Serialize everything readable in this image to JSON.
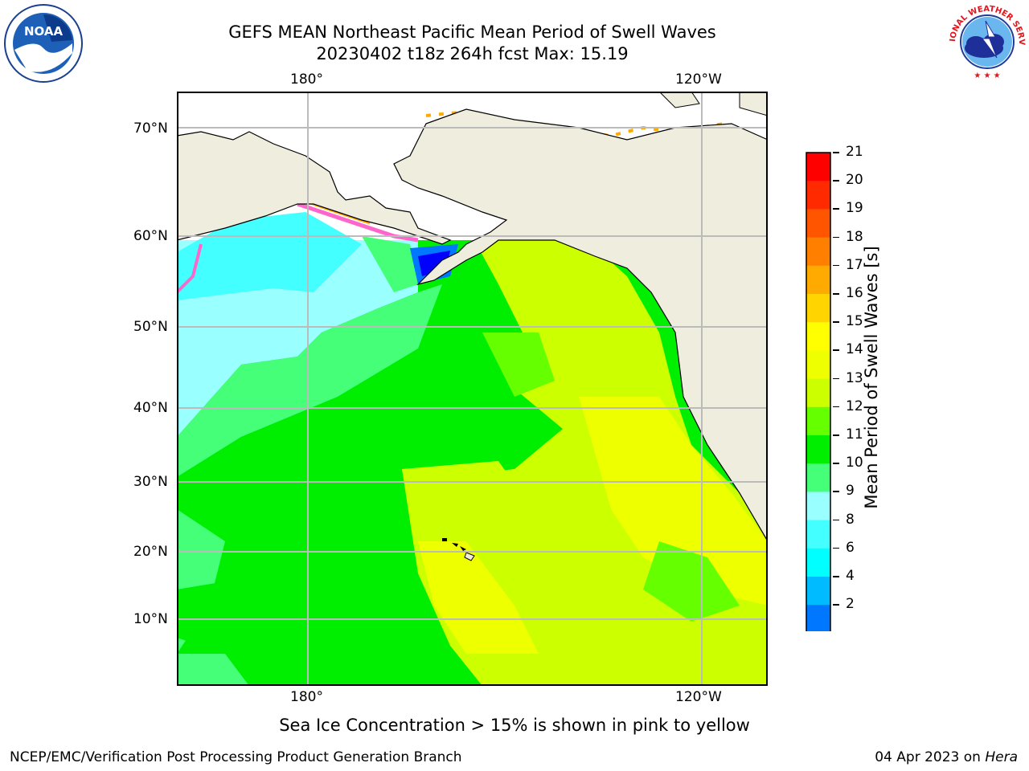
{
  "title_line1": "GEFS MEAN Northeast Pacific Mean Period of Swell Waves",
  "title_line2": "20230402 t18z 264h fcst   Max: 15.19",
  "logos": {
    "left": {
      "icon": "noaa-logo-icon",
      "text": "NOAA"
    },
    "right": {
      "icon": "national-weather-service-logo-icon",
      "text": "NATIONAL WEATHER SERVICE"
    }
  },
  "map": {
    "top_lon_labels": [
      "180°",
      "120°W"
    ],
    "bottom_lon_labels": [
      "180°",
      "120°W"
    ],
    "lat_labels": [
      "70°N",
      "60°N",
      "50°N",
      "40°N",
      "30°N",
      "20°N",
      "10°N"
    ],
    "colors": {
      "land": "#efedde",
      "ice_free_gap": "#ffffff",
      "grid": "#bbbbbb",
      "coast": "#000000"
    }
  },
  "colorbar": {
    "label": "Mean Period of Swell Waves [s]",
    "ticks": [
      "21",
      "20",
      "19",
      "18",
      "17",
      "16",
      "15",
      "14",
      "13",
      "12",
      "11",
      "10",
      "9",
      "8",
      "6",
      "4",
      "2"
    ],
    "colors_top_to_bottom": [
      "#ff0000",
      "#ff2a00",
      "#ff5500",
      "#ff7f00",
      "#ffaa00",
      "#ffd400",
      "#ffff00",
      "#eeff00",
      "#ccff00",
      "#66ff00",
      "#00ee00",
      "#44ff77",
      "#99ffff",
      "#44ffff",
      "#00ffff",
      "#00bbff",
      "#0077ff"
    ],
    "extend_color": "#0000ff"
  },
  "notes": {
    "ice": "Sea Ice Concentration > 15% is shown in pink to yellow"
  },
  "footer": {
    "left": "NCEP/EMC/Verification Post Processing Product Generation Branch",
    "right_date": "04 Apr 2023 on ",
    "right_host": "Hera"
  }
}
